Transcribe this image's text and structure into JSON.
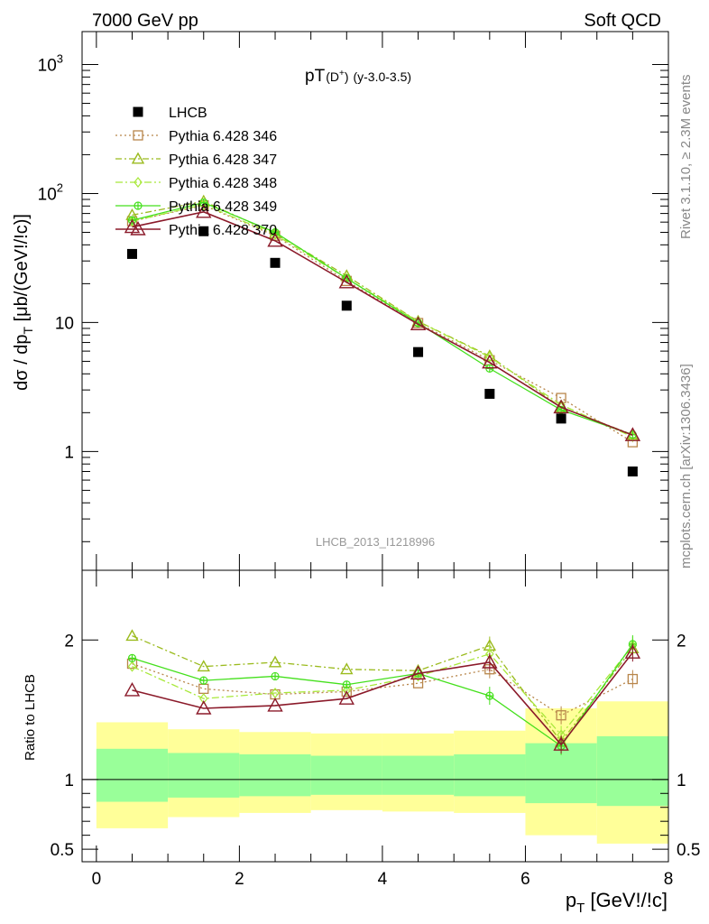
{
  "header": {
    "left": "7000 GeV pp",
    "right": "Soft QCD"
  },
  "side_labels": {
    "rivet": "Rivet 3.1.10, ≥ 2.3M events",
    "mcplots": "mcplots.cern.ch [arXiv:1306.3436]"
  },
  "plot_title": {
    "main": "pT",
    "particle": "(D",
    "particle_sup": "+",
    "particle_close": ")",
    "range": "(y-3.0-3.5)"
  },
  "analysis_id": "LHCB_2013_I1218996",
  "colors": {
    "data": "#000000",
    "s346": "#b8864b",
    "s347": "#9bbb1e",
    "s348": "#a8e83a",
    "s349": "#44e01c",
    "s370": "#8b1a2a",
    "band_inner": "#99ff99",
    "band_outer": "#ffff99"
  },
  "chart_data": [
    {
      "type": "scatter",
      "name": "main",
      "ylabel": "dσ / dp_T [μb/(GeV!/!c)]",
      "ylabel_main": "dσ / dp",
      "ylabel_sub": "T",
      "ylabel_tail": " [μb/(GeV!/!c)]",
      "yscale": "log",
      "xlim": [
        -0.2,
        8.0
      ],
      "ylim": [
        0.12,
        1800
      ],
      "yticks": [
        {
          "v": 1000,
          "base": "10",
          "exp": "3"
        },
        {
          "v": 100,
          "base": "10",
          "exp": "2"
        },
        {
          "v": 10,
          "base": "10",
          "exp": ""
        },
        {
          "v": 1,
          "base": "1",
          "exp": ""
        }
      ],
      "x": [
        0.5,
        1.5,
        2.5,
        3.5,
        4.5,
        5.5,
        6.5,
        7.5
      ],
      "series": [
        {
          "name": "LHCB",
          "key": "data",
          "values": [
            34,
            51,
            29,
            13.5,
            5.9,
            2.8,
            1.8,
            0.7
          ]
        },
        {
          "name": "Pythia 6.428 346",
          "key": "s346",
          "values": [
            61,
            81,
            47,
            21,
            9.9,
            5.1,
            2.6,
            1.18
          ]
        },
        {
          "name": "Pythia 6.428 347",
          "key": "s347",
          "values": [
            68,
            87,
            49,
            23,
            10.2,
            5.5,
            2.2,
            1.35
          ]
        },
        {
          "name": "Pythia 6.428 348",
          "key": "s348",
          "values": [
            61,
            82,
            48,
            22,
            10.2,
            5.4,
            2.3,
            1.3
          ]
        },
        {
          "name": "Pythia 6.428 349",
          "key": "s349",
          "values": [
            62,
            85,
            50,
            22,
            9.9,
            4.4,
            2.1,
            1.35
          ]
        },
        {
          "name": "Pythia 6.428 370",
          "key": "s370",
          "values": [
            55,
            72,
            43,
            20.5,
            9.7,
            4.9,
            2.2,
            1.34
          ]
        }
      ]
    },
    {
      "type": "line",
      "name": "ratio",
      "ylabel": "Ratio to LHCB",
      "xlabel": "p_T [GeV!/!c]",
      "xlabel_main": "p",
      "xlabel_sub": "T",
      "xlabel_tail": " [GeV!/!c]",
      "xlim": [
        -0.2,
        8.0
      ],
      "ylim": [
        0.41,
        2.5
      ],
      "yticks": [
        {
          "v": 2,
          "label": "2"
        },
        {
          "v": 1,
          "label": "1"
        },
        {
          "v": 0.5,
          "label": "0.5"
        }
      ],
      "xticks": [
        {
          "v": 0,
          "label": "0"
        },
        {
          "v": 2,
          "label": "2"
        },
        {
          "v": 4,
          "label": "4"
        },
        {
          "v": 6,
          "label": "6"
        },
        {
          "v": 8,
          "label": "8"
        }
      ],
      "x": [
        0.5,
        1.5,
        2.5,
        3.5,
        4.5,
        5.5,
        6.5,
        7.5
      ],
      "band": {
        "edges": [
          0,
          1,
          2,
          3,
          4,
          5,
          6,
          7,
          8
        ],
        "inner_lo": [
          0.84,
          0.87,
          0.88,
          0.89,
          0.89,
          0.88,
          0.83,
          0.81
        ],
        "inner_hi": [
          1.22,
          1.19,
          1.18,
          1.17,
          1.17,
          1.18,
          1.26,
          1.31
        ],
        "outer_lo": [
          0.65,
          0.73,
          0.76,
          0.78,
          0.77,
          0.76,
          0.6,
          0.54
        ],
        "outer_hi": [
          1.41,
          1.36,
          1.34,
          1.33,
          1.33,
          1.35,
          1.51,
          1.56
        ]
      },
      "series": [
        {
          "name": "Pythia 6.428 346",
          "key": "s346",
          "values": [
            1.83,
            1.65,
            1.61,
            1.63,
            1.69,
            1.79,
            1.46,
            1.72
          ]
        },
        {
          "name": "Pythia 6.428 347",
          "key": "s347",
          "values": [
            2.03,
            1.81,
            1.84,
            1.79,
            1.78,
            1.96,
            1.27,
            1.94
          ]
        },
        {
          "name": "Pythia 6.428 348",
          "key": "s348",
          "values": [
            1.81,
            1.58,
            1.62,
            1.64,
            1.74,
            1.9,
            1.32,
            1.96
          ]
        },
        {
          "name": "Pythia 6.428 349",
          "key": "s349",
          "values": [
            1.87,
            1.71,
            1.74,
            1.68,
            1.76,
            1.6,
            1.24,
            1.97
          ]
        },
        {
          "name": "Pythia 6.428 370",
          "key": "s370",
          "values": [
            1.64,
            1.51,
            1.53,
            1.58,
            1.76,
            1.84,
            1.25,
            1.91
          ]
        }
      ]
    }
  ]
}
